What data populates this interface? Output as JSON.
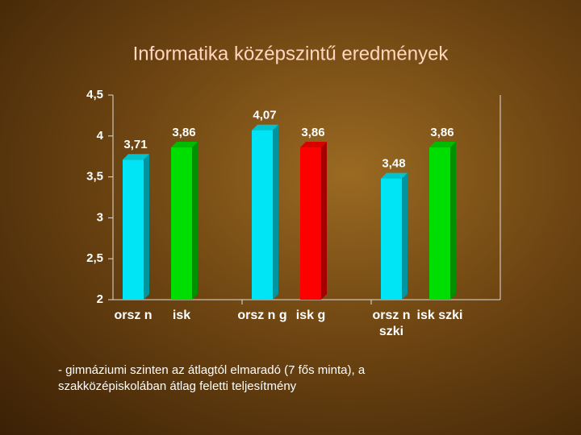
{
  "chart_data": {
    "type": "bar3d",
    "title": "Informatika középszintű eredmények",
    "categories": [
      "orsz n",
      "isk",
      "orsz n g",
      "isk g",
      "orsz n szki",
      "isk szki"
    ],
    "values": [
      3.71,
      3.86,
      4.07,
      3.86,
      3.48,
      3.86
    ],
    "value_labels": [
      "3,71",
      "3,86",
      "4,07",
      "3,86",
      "3,48",
      "3,86"
    ],
    "colors": [
      "#00e5f5",
      "#00dd00",
      "#00e5f5",
      "#ff0000",
      "#00e5f5",
      "#00dd00"
    ],
    "ylim": [
      2,
      4.5
    ],
    "yticks": [
      2,
      {
        "value": 2.5,
        "label": "2,5"
      },
      3,
      {
        "value": 3.5,
        "label": "3,5"
      },
      4,
      {
        "value": 4.5,
        "label": "4,5"
      }
    ],
    "annotation": "- gimnáziumi szinten az átlagtól elmaradó (7 fős minta), a szakközépiskolában átlag feletti teljesítmény"
  }
}
